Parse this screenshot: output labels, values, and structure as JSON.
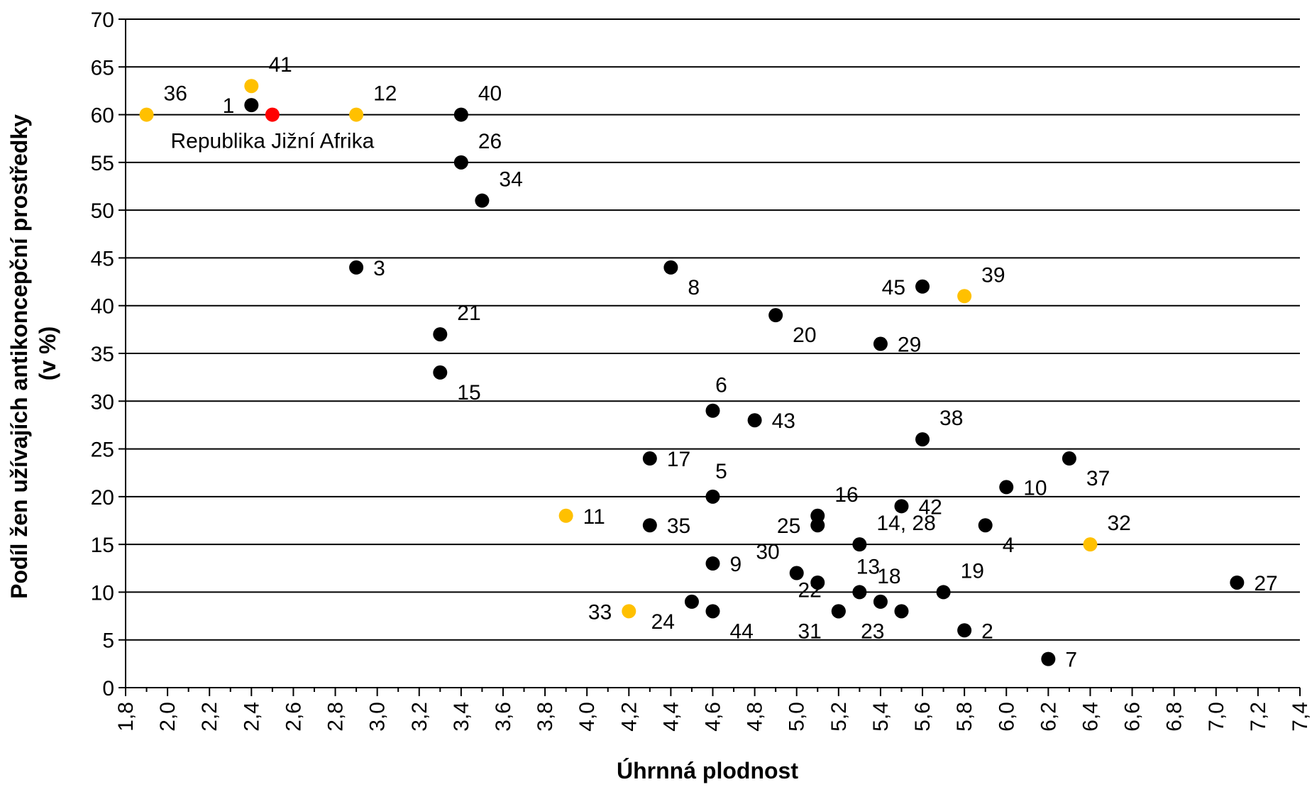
{
  "chart_data": {
    "type": "scatter",
    "xlabel": "Úhrnná plodnost",
    "ylabel": [
      "Podíl žen užívajích antikoncepční prostředky",
      "(v %)"
    ],
    "xlim": [
      1.8,
      7.4
    ],
    "ylim": [
      0,
      70
    ],
    "x_ticks": [
      "1,8",
      "2,0",
      "2,2",
      "2,4",
      "2,6",
      "2,8",
      "3,0",
      "3,2",
      "3,4",
      "3,6",
      "3,8",
      "4,0",
      "4,2",
      "4,4",
      "4,6",
      "4,8",
      "5,0",
      "5,2",
      "5,4",
      "5,6",
      "5,8",
      "6,0",
      "6,2",
      "6,4",
      "6,6",
      "6,8",
      "7,0",
      "7,2",
      "7,4"
    ],
    "y_ticks": [
      "0",
      "5",
      "10",
      "15",
      "20",
      "25",
      "30",
      "35",
      "40",
      "45",
      "50",
      "55",
      "60",
      "65",
      "70"
    ],
    "grid": "horizontal",
    "colors": {
      "black": "#000000",
      "yellow": "#FFC000",
      "red": "#FF0000"
    },
    "points": [
      {
        "label": "36",
        "x": 1.9,
        "y": 60,
        "color": "yellow",
        "pos": "ne"
      },
      {
        "label": "41",
        "x": 2.4,
        "y": 63,
        "color": "yellow",
        "pos": "ne"
      },
      {
        "label": "1",
        "x": 2.4,
        "y": 61,
        "color": "black",
        "pos": "w"
      },
      {
        "label": "Republika Jižní Afrika",
        "x": 2.5,
        "y": 60,
        "color": "red",
        "pos": "below"
      },
      {
        "label": "12",
        "x": 2.9,
        "y": 60,
        "color": "yellow",
        "pos": "ne"
      },
      {
        "label": "40",
        "x": 3.4,
        "y": 60,
        "color": "black",
        "pos": "ne"
      },
      {
        "label": "26",
        "x": 3.4,
        "y": 55,
        "color": "black",
        "pos": "ne"
      },
      {
        "label": "34",
        "x": 3.5,
        "y": 51,
        "color": "black",
        "pos": "ne"
      },
      {
        "label": "3",
        "x": 2.9,
        "y": 44,
        "color": "black",
        "pos": "e"
      },
      {
        "label": "21",
        "x": 3.3,
        "y": 37,
        "color": "black",
        "pos": "ne"
      },
      {
        "label": "15",
        "x": 3.3,
        "y": 33,
        "color": "black",
        "pos": "se"
      },
      {
        "label": "8",
        "x": 4.4,
        "y": 44,
        "color": "black",
        "pos": "se"
      },
      {
        "label": "45",
        "x": 5.6,
        "y": 42,
        "color": "black",
        "pos": "w"
      },
      {
        "label": "39",
        "x": 5.8,
        "y": 41,
        "color": "yellow",
        "pos": "ne"
      },
      {
        "label": "20",
        "x": 4.9,
        "y": 39,
        "color": "black",
        "pos": "se"
      },
      {
        "label": "29",
        "x": 5.4,
        "y": 36,
        "color": "black",
        "pos": "e"
      },
      {
        "label": "6",
        "x": 4.6,
        "y": 29,
        "color": "black",
        "pos": "n"
      },
      {
        "label": "43",
        "x": 4.8,
        "y": 28,
        "color": "black",
        "pos": "e"
      },
      {
        "label": "38",
        "x": 5.6,
        "y": 26,
        "color": "black",
        "pos": "ne"
      },
      {
        "label": "17",
        "x": 4.3,
        "y": 24,
        "color": "black",
        "pos": "e"
      },
      {
        "label": "37",
        "x": 6.3,
        "y": 24,
        "color": "black",
        "pos": "se"
      },
      {
        "label": "5",
        "x": 4.6,
        "y": 20,
        "color": "black",
        "pos": "n"
      },
      {
        "label": "10",
        "x": 6.0,
        "y": 21,
        "color": "black",
        "pos": "e"
      },
      {
        "label": "11",
        "x": 3.9,
        "y": 18,
        "color": "yellow",
        "pos": "e"
      },
      {
        "label": "16",
        "x": 5.1,
        "y": 18,
        "color": "black",
        "pos": "ne"
      },
      {
        "label": "42",
        "x": 5.5,
        "y": 19,
        "color": "black",
        "pos": "e"
      },
      {
        "label": "35",
        "x": 4.3,
        "y": 17,
        "color": "black",
        "pos": "e"
      },
      {
        "label": "25",
        "x": 5.1,
        "y": 17,
        "color": "black",
        "pos": "w"
      },
      {
        "label": "4",
        "x": 5.9,
        "y": 17,
        "color": "black",
        "pos": "se"
      },
      {
        "label": "14, 28",
        "x": 5.3,
        "y": 15,
        "color": "black",
        "pos": "ne"
      },
      {
        "label": "32",
        "x": 6.4,
        "y": 15,
        "color": "yellow",
        "pos": "ne"
      },
      {
        "label": "9",
        "x": 4.6,
        "y": 13,
        "color": "black",
        "pos": "e"
      },
      {
        "label": "30",
        "x": 5.0,
        "y": 12,
        "color": "black",
        "pos": "nw"
      },
      {
        "label": "13",
        "x": 5.3,
        "y": 10,
        "color": "black",
        "pos": "n"
      },
      {
        "label": "18",
        "x": 5.4,
        "y": 9,
        "color": "black",
        "pos": "n"
      },
      {
        "label": "19",
        "x": 5.7,
        "y": 10,
        "color": "black",
        "pos": "ne"
      },
      {
        "label": "27",
        "x": 7.1,
        "y": 11,
        "color": "black",
        "pos": "e"
      },
      {
        "label": "",
        "x": 5.1,
        "y": 11,
        "color": "black",
        "pos": "e"
      },
      {
        "label": "33",
        "x": 4.2,
        "y": 8,
        "color": "yellow",
        "pos": "w"
      },
      {
        "label": "24",
        "x": 4.5,
        "y": 9,
        "color": "black",
        "pos": "sw"
      },
      {
        "label": "44",
        "x": 4.6,
        "y": 8,
        "color": "black",
        "pos": "se"
      },
      {
        "label": "22",
        "x": 5.2,
        "y": 8,
        "color": "black",
        "pos": "nw"
      },
      {
        "label": "31",
        "x": 5.2,
        "y": 8,
        "color": "black",
        "pos": "sw"
      },
      {
        "label": "23",
        "x": 5.5,
        "y": 8,
        "color": "black",
        "pos": "sw"
      },
      {
        "label": "2",
        "x": 5.8,
        "y": 6,
        "color": "black",
        "pos": "e"
      },
      {
        "label": "7",
        "x": 6.2,
        "y": 3,
        "color": "black",
        "pos": "e"
      }
    ]
  }
}
